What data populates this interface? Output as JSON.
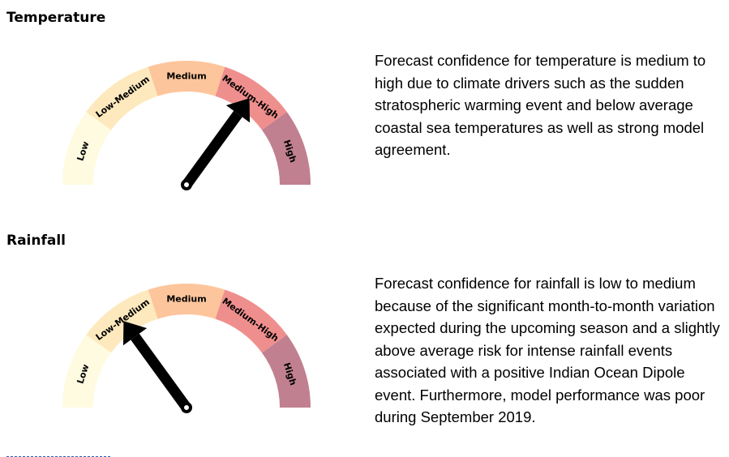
{
  "sections": [
    {
      "title": "Temperature",
      "confidence_level": "Medium-High",
      "gauge_labels": [
        "Low",
        "Low-Medium",
        "Medium",
        "Medium-High",
        "High"
      ],
      "description": "Forecast confidence for temperature is medium to high due to climate drivers such as the sudden stratospheric warming event and below average coastal sea temperatures as well as strong model agreement."
    },
    {
      "title": "Rainfall",
      "confidence_level": "Low-Medium",
      "gauge_labels": [
        "Low",
        "Low-Medium",
        "Medium",
        "Medium-High",
        "High"
      ],
      "description": "Forecast confidence for rainfall is low to medium because of the significant month-to-month variation expected during the upcoming season and a slightly above average risk for intense rainfall events associated with a positive Indian Ocean Dipole event. Furthermore, model performance was poor during  September 2019."
    }
  ],
  "colors": {
    "low": "#fefbe0",
    "low_medium": "#fde9bd",
    "medium": "#fdc59c",
    "medium_high": "#ef8f8d",
    "high": "#c08090",
    "needle": "#000000"
  }
}
